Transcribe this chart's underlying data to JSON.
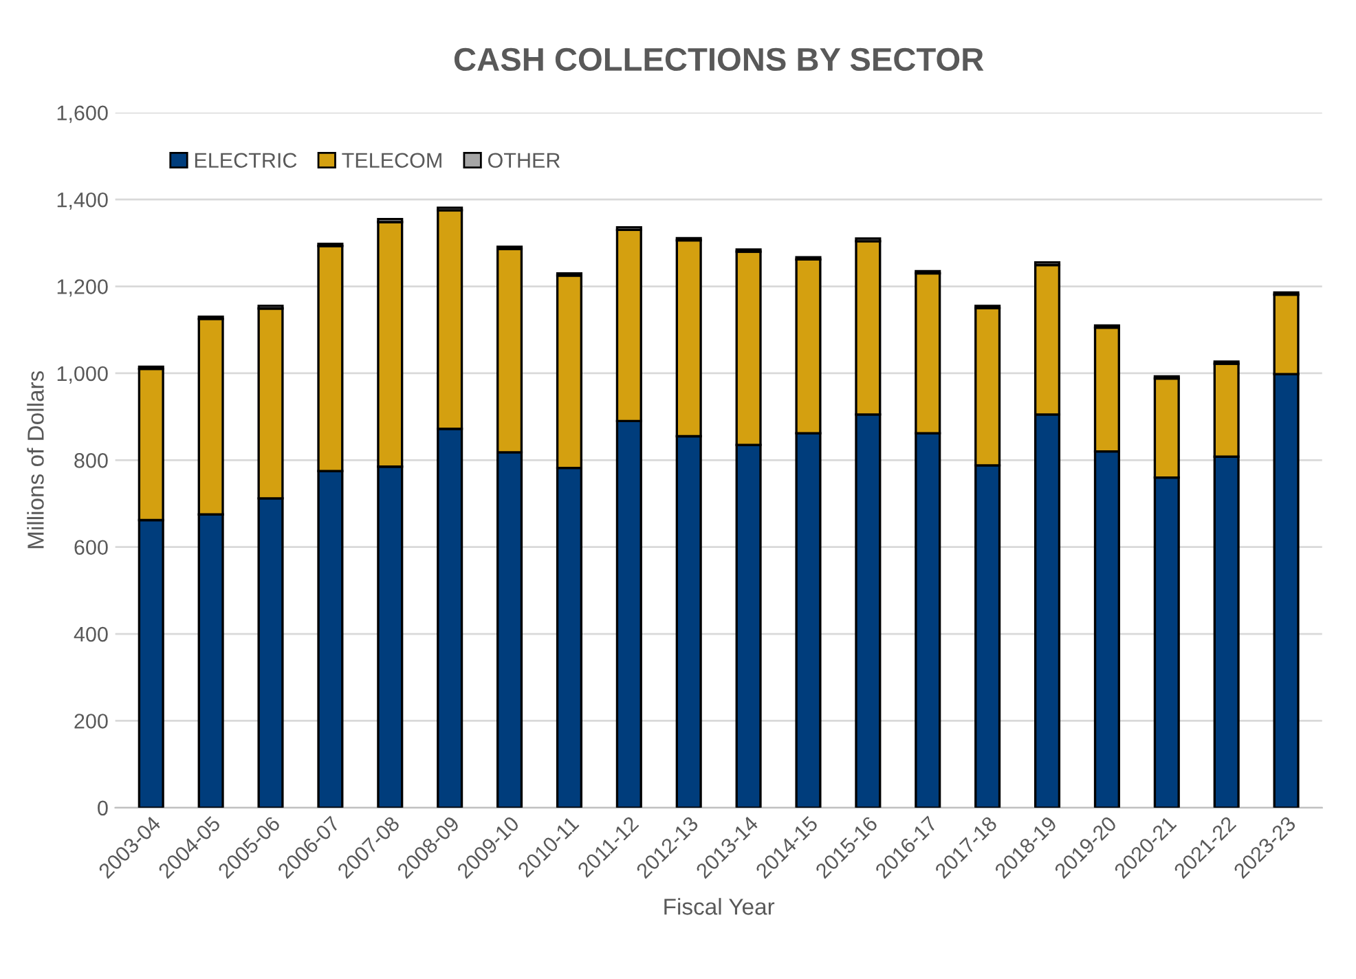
{
  "chart_data": {
    "type": "bar",
    "title": "CASH COLLECTIONS BY SECTOR",
    "xlabel": "Fiscal Year",
    "ylabel": "Millions of Dollars",
    "categories": [
      "2003-04",
      "2004-05",
      "2005-06",
      "2006-07",
      "2007-08",
      "2008-09",
      "2009-10",
      "2010-11",
      "2011-12",
      "2012-13",
      "2013-14",
      "2014-15",
      "2015-16",
      "2016-17",
      "2017-18",
      "2018-19",
      "2019-20",
      "2020-21",
      "2021-22",
      "2023-23"
    ],
    "stacked": true,
    "series": [
      {
        "name": "ELECTRIC",
        "color": "#003d7c",
        "values": [
          662,
          675,
          712,
          775,
          785,
          872,
          818,
          782,
          890,
          855,
          835,
          862,
          905,
          862,
          788,
          905,
          820,
          760,
          808,
          998
        ]
      },
      {
        "name": "TELECOM",
        "color": "#d4a010",
        "values": [
          348,
          450,
          437,
          518,
          563,
          503,
          468,
          443,
          440,
          451,
          445,
          400,
          399,
          368,
          362,
          344,
          285,
          228,
          214,
          183
        ]
      },
      {
        "name": "OTHER",
        "color": "#a6a6a6",
        "values": [
          5,
          5,
          6,
          5,
          7,
          6,
          5,
          5,
          6,
          5,
          5,
          5,
          6,
          5,
          5,
          6,
          5,
          5,
          5,
          5
        ]
      }
    ],
    "ylim": [
      0,
      1600
    ],
    "yticks": [
      {
        "value": 0,
        "label": "0"
      },
      {
        "value": 200,
        "label": "200"
      },
      {
        "value": 400,
        "label": "400"
      },
      {
        "value": 600,
        "label": "600"
      },
      {
        "value": 800,
        "label": "800"
      },
      {
        "value": 1000,
        "label": "1,000"
      },
      {
        "value": 1200,
        "label": "1,200"
      },
      {
        "value": 1400,
        "label": "1,400"
      },
      {
        "value": 1600,
        "label": "1,600"
      }
    ],
    "grid": "y",
    "legend": "top left"
  }
}
